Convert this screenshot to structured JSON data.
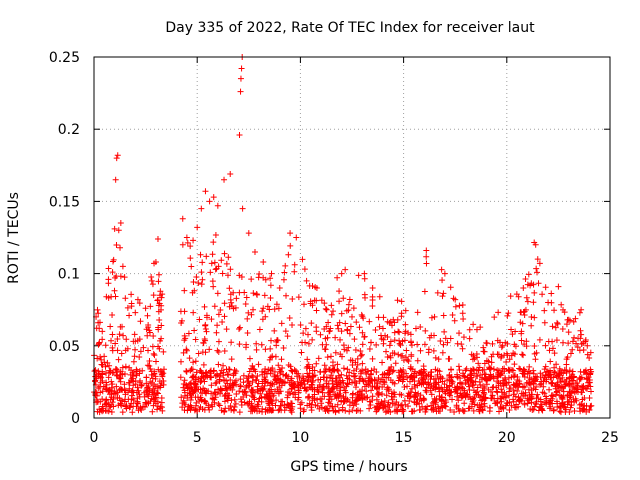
{
  "chart_data": {
    "type": "scatter",
    "title": "Day 335 of 2022, Rate Of TEC Index for receiver laut",
    "xlabel": "GPS time / hours",
    "ylabel": "ROTI / TECUs",
    "xlim": [
      0,
      25
    ],
    "ylim": [
      0,
      0.25
    ],
    "xticks": [
      0,
      5,
      10,
      15,
      20,
      25
    ],
    "yticks": [
      0,
      0.05,
      0.1,
      0.15,
      0.2,
      0.25
    ],
    "xtick_labels": [
      "0",
      "5",
      "10",
      "15",
      "20",
      "25"
    ],
    "ytick_labels": [
      "0",
      "0.05",
      "0.1",
      "0.15",
      "0.2",
      "0.25"
    ],
    "grid": true,
    "marker": "plus",
    "color": "#ff0000",
    "data_gap_hours": [
      3.4,
      4.2
    ],
    "series": [
      {
        "points": [
          [
            0.1,
            0.07
          ],
          [
            0.2,
            0.066
          ],
          [
            0.4,
            0.06
          ],
          [
            0.6,
            0.084
          ],
          [
            0.7,
            0.096
          ],
          [
            0.9,
            0.101
          ],
          [
            1.0,
            0.131
          ],
          [
            1.05,
            0.165
          ],
          [
            1.1,
            0.18
          ],
          [
            1.15,
            0.182
          ],
          [
            1.2,
            0.13
          ],
          [
            1.3,
            0.135
          ],
          [
            1.4,
            0.105
          ],
          [
            1.7,
            0.071
          ],
          [
            2.0,
            0.073
          ],
          [
            2.5,
            0.076
          ],
          [
            2.8,
            0.095
          ],
          [
            3.0,
            0.108
          ],
          [
            3.1,
            0.124
          ],
          [
            3.2,
            0.085
          ],
          [
            4.3,
            0.138
          ],
          [
            4.5,
            0.125
          ],
          [
            4.8,
            0.123
          ],
          [
            5.0,
            0.132
          ],
          [
            5.2,
            0.145
          ],
          [
            5.4,
            0.157
          ],
          [
            5.6,
            0.15
          ],
          [
            5.8,
            0.153
          ],
          [
            6.0,
            0.147
          ],
          [
            6.3,
            0.165
          ],
          [
            6.6,
            0.169
          ],
          [
            7.05,
            0.196
          ],
          [
            7.1,
            0.226
          ],
          [
            7.12,
            0.235
          ],
          [
            7.15,
            0.242
          ],
          [
            7.18,
            0.25
          ],
          [
            7.2,
            0.145
          ],
          [
            7.5,
            0.128
          ],
          [
            7.8,
            0.115
          ],
          [
            8.2,
            0.108
          ],
          [
            8.6,
            0.1
          ],
          [
            9.0,
            0.09
          ],
          [
            9.5,
            0.128
          ],
          [
            9.8,
            0.125
          ],
          [
            10.3,
            0.095
          ],
          [
            10.8,
            0.09
          ],
          [
            11.5,
            0.078
          ],
          [
            12.0,
            0.1
          ],
          [
            12.5,
            0.07
          ],
          [
            13.1,
            0.1
          ],
          [
            13.5,
            0.09
          ],
          [
            14.0,
            0.062
          ],
          [
            14.5,
            0.068
          ],
          [
            15.1,
            0.06
          ],
          [
            15.6,
            0.062
          ],
          [
            16.1,
            0.116
          ],
          [
            16.5,
            0.07
          ],
          [
            17.0,
            0.1
          ],
          [
            17.5,
            0.082
          ],
          [
            18.2,
            0.055
          ],
          [
            19.0,
            0.052
          ],
          [
            19.8,
            0.05
          ],
          [
            20.8,
            0.09
          ],
          [
            21.4,
            0.12
          ],
          [
            21.5,
            0.11
          ],
          [
            22.0,
            0.08
          ],
          [
            22.5,
            0.091
          ],
          [
            23.0,
            0.068
          ],
          [
            23.6,
            0.075
          ],
          [
            23.9,
            0.05
          ]
        ]
      }
    ]
  }
}
